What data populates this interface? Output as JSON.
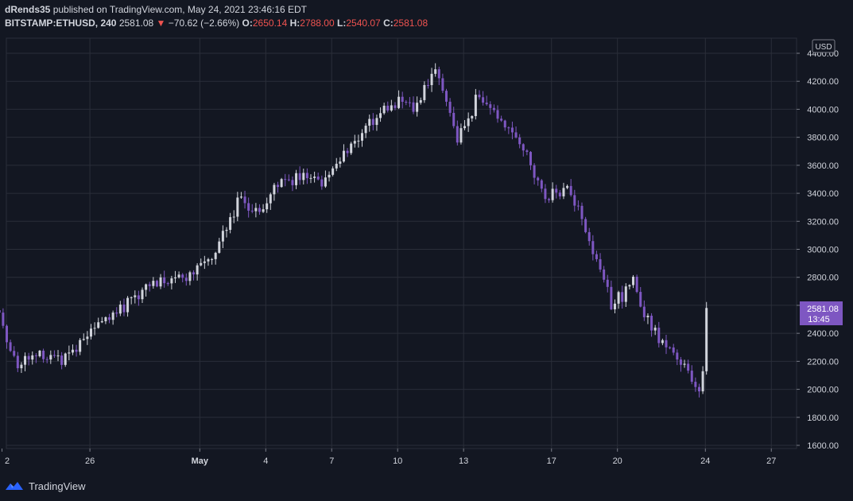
{
  "header": {
    "author": "dRends35",
    "published": "published on TradingView.com, May 24, 2021 23:46:16 EDT",
    "symbol": "BITSTAMP:ETHUSD, 240",
    "last": "2581.08",
    "change": "−70.62 (−2.66%)",
    "o_label": "O:",
    "o_value": "2650.14",
    "h_label": "H:",
    "h_value": "2788.00",
    "l_label": "L:",
    "l_value": "2540.07",
    "c_label": "C:",
    "c_value": "2581.08"
  },
  "footer": {
    "brand": "TradingView"
  },
  "icons": {
    "down": "triangle-down-icon",
    "logo": "tradingview-logo-icon"
  },
  "colors": {
    "bg": "#131722",
    "grid": "#2a2e39",
    "up": "#d1d4dc",
    "down": "#7e57c2",
    "label": "#7e57c2",
    "text": "#d1d4dc",
    "change": "#ef5350"
  },
  "chart_data": {
    "type": "candlestick",
    "interval": "240",
    "currency": "USD",
    "price_label": {
      "value": "2581.08",
      "countdown": "13:45"
    },
    "ylim": [
      1600,
      4400
    ],
    "yticks": [
      "4400.00",
      "4200.00",
      "4000.00",
      "3800.00",
      "3600.00",
      "3400.00",
      "3200.00",
      "3000.00",
      "2800.00",
      "2600.00",
      "2400.00",
      "2200.00",
      "2000.00",
      "1800.00",
      "1600.00"
    ],
    "xticks": [
      "2",
      "26",
      "May",
      "4",
      "7",
      "10",
      "13",
      "17",
      "20",
      "24",
      "27"
    ],
    "anchors": [
      {
        "date": "Apr 22",
        "price": 2570
      },
      {
        "date": "Apr 23",
        "price": 2180
      },
      {
        "date": "Apr 24",
        "price": 2250
      },
      {
        "date": "Apr 25",
        "price": 2200
      },
      {
        "date": "Apr 26",
        "price": 2380
      },
      {
        "date": "Apr 27",
        "price": 2520
      },
      {
        "date": "Apr 28",
        "price": 2620
      },
      {
        "date": "Apr 29",
        "price": 2740
      },
      {
        "date": "Apr 30",
        "price": 2760
      },
      {
        "date": "May 1",
        "price": 2850
      },
      {
        "date": "May 2",
        "price": 2950
      },
      {
        "date": "May 3",
        "price": 3350
      },
      {
        "date": "May 4",
        "price": 3280
      },
      {
        "date": "May 5",
        "price": 3500
      },
      {
        "date": "May 6",
        "price": 3520
      },
      {
        "date": "May 7",
        "price": 3500
      },
      {
        "date": "May 8",
        "price": 3700
      },
      {
        "date": "May 9",
        "price": 3900
      },
      {
        "date": "May 10",
        "price": 4050
      },
      {
        "date": "May 11",
        "price": 4000
      },
      {
        "date": "May 12",
        "price": 4300
      },
      {
        "date": "May 13",
        "price": 3800
      },
      {
        "date": "May 14",
        "price": 4100
      },
      {
        "date": "May 15",
        "price": 3900
      },
      {
        "date": "May 16",
        "price": 3750
      },
      {
        "date": "May 17",
        "price": 3350
      },
      {
        "date": "May 18",
        "price": 3450
      },
      {
        "date": "May 19",
        "price": 3100
      },
      {
        "date": "May 20",
        "price": 2600
      },
      {
        "date": "May 21",
        "price": 2750
      },
      {
        "date": "May 22",
        "price": 2400
      },
      {
        "date": "May 23",
        "price": 2200
      },
      {
        "date": "May 24",
        "price": 2000
      },
      {
        "date": "May 25",
        "price": 2581
      }
    ]
  }
}
